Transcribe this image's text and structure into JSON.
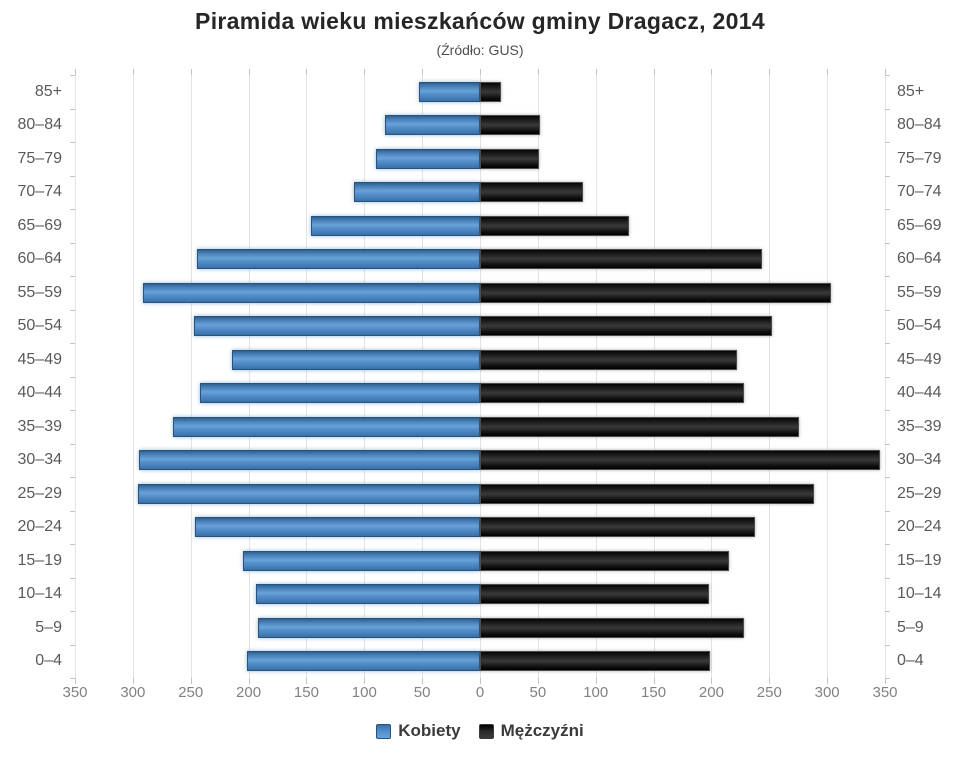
{
  "header": {
    "title": "Piramida wieku mieszkańców gminy Dragacz, 2014",
    "subtitle": "(Źródło: GUS)"
  },
  "legend": {
    "items": [
      {
        "label": "Kobiety",
        "color": "#4d86c0"
      },
      {
        "label": "Mężczyźni",
        "color": "#1f1f1f"
      }
    ]
  },
  "axis": {
    "x_tick_labels": [
      "350",
      "300",
      "250",
      "200",
      "150",
      "100",
      "50",
      "0",
      "50",
      "100",
      "150",
      "200",
      "250",
      "300",
      "350"
    ],
    "x_max": 350
  },
  "chart_data": {
    "type": "bar",
    "variant": "population-pyramid",
    "title": "Piramida wieku mieszkańców gminy Dragacz, 2014",
    "subtitle": "(Źródło: GUS)",
    "xlabel": "",
    "ylabel": "",
    "xlim": [
      -350,
      350
    ],
    "x_tick_step": 50,
    "grid": true,
    "legend_position": "bottom",
    "categories": [
      "85+",
      "80–84",
      "75–79",
      "70–74",
      "65–69",
      "60–64",
      "55–59",
      "50–54",
      "45–49",
      "40–44",
      "35–39",
      "30–34",
      "25–29",
      "20–24",
      "15–19",
      "10–14",
      "5–9",
      "0–4"
    ],
    "series": [
      {
        "name": "Kobiety",
        "side": "left",
        "color": "#4d86c0",
        "values": [
          53,
          82,
          90,
          109,
          146,
          245,
          291,
          247,
          214,
          242,
          265,
          295,
          296,
          246,
          205,
          194,
          192,
          201
        ]
      },
      {
        "name": "Mężczyźni",
        "side": "right",
        "color": "#1f1f1f",
        "values": [
          18,
          52,
          51,
          89,
          129,
          244,
          303,
          252,
          222,
          228,
          276,
          346,
          289,
          238,
          215,
          198,
          228,
          199
        ]
      }
    ]
  }
}
